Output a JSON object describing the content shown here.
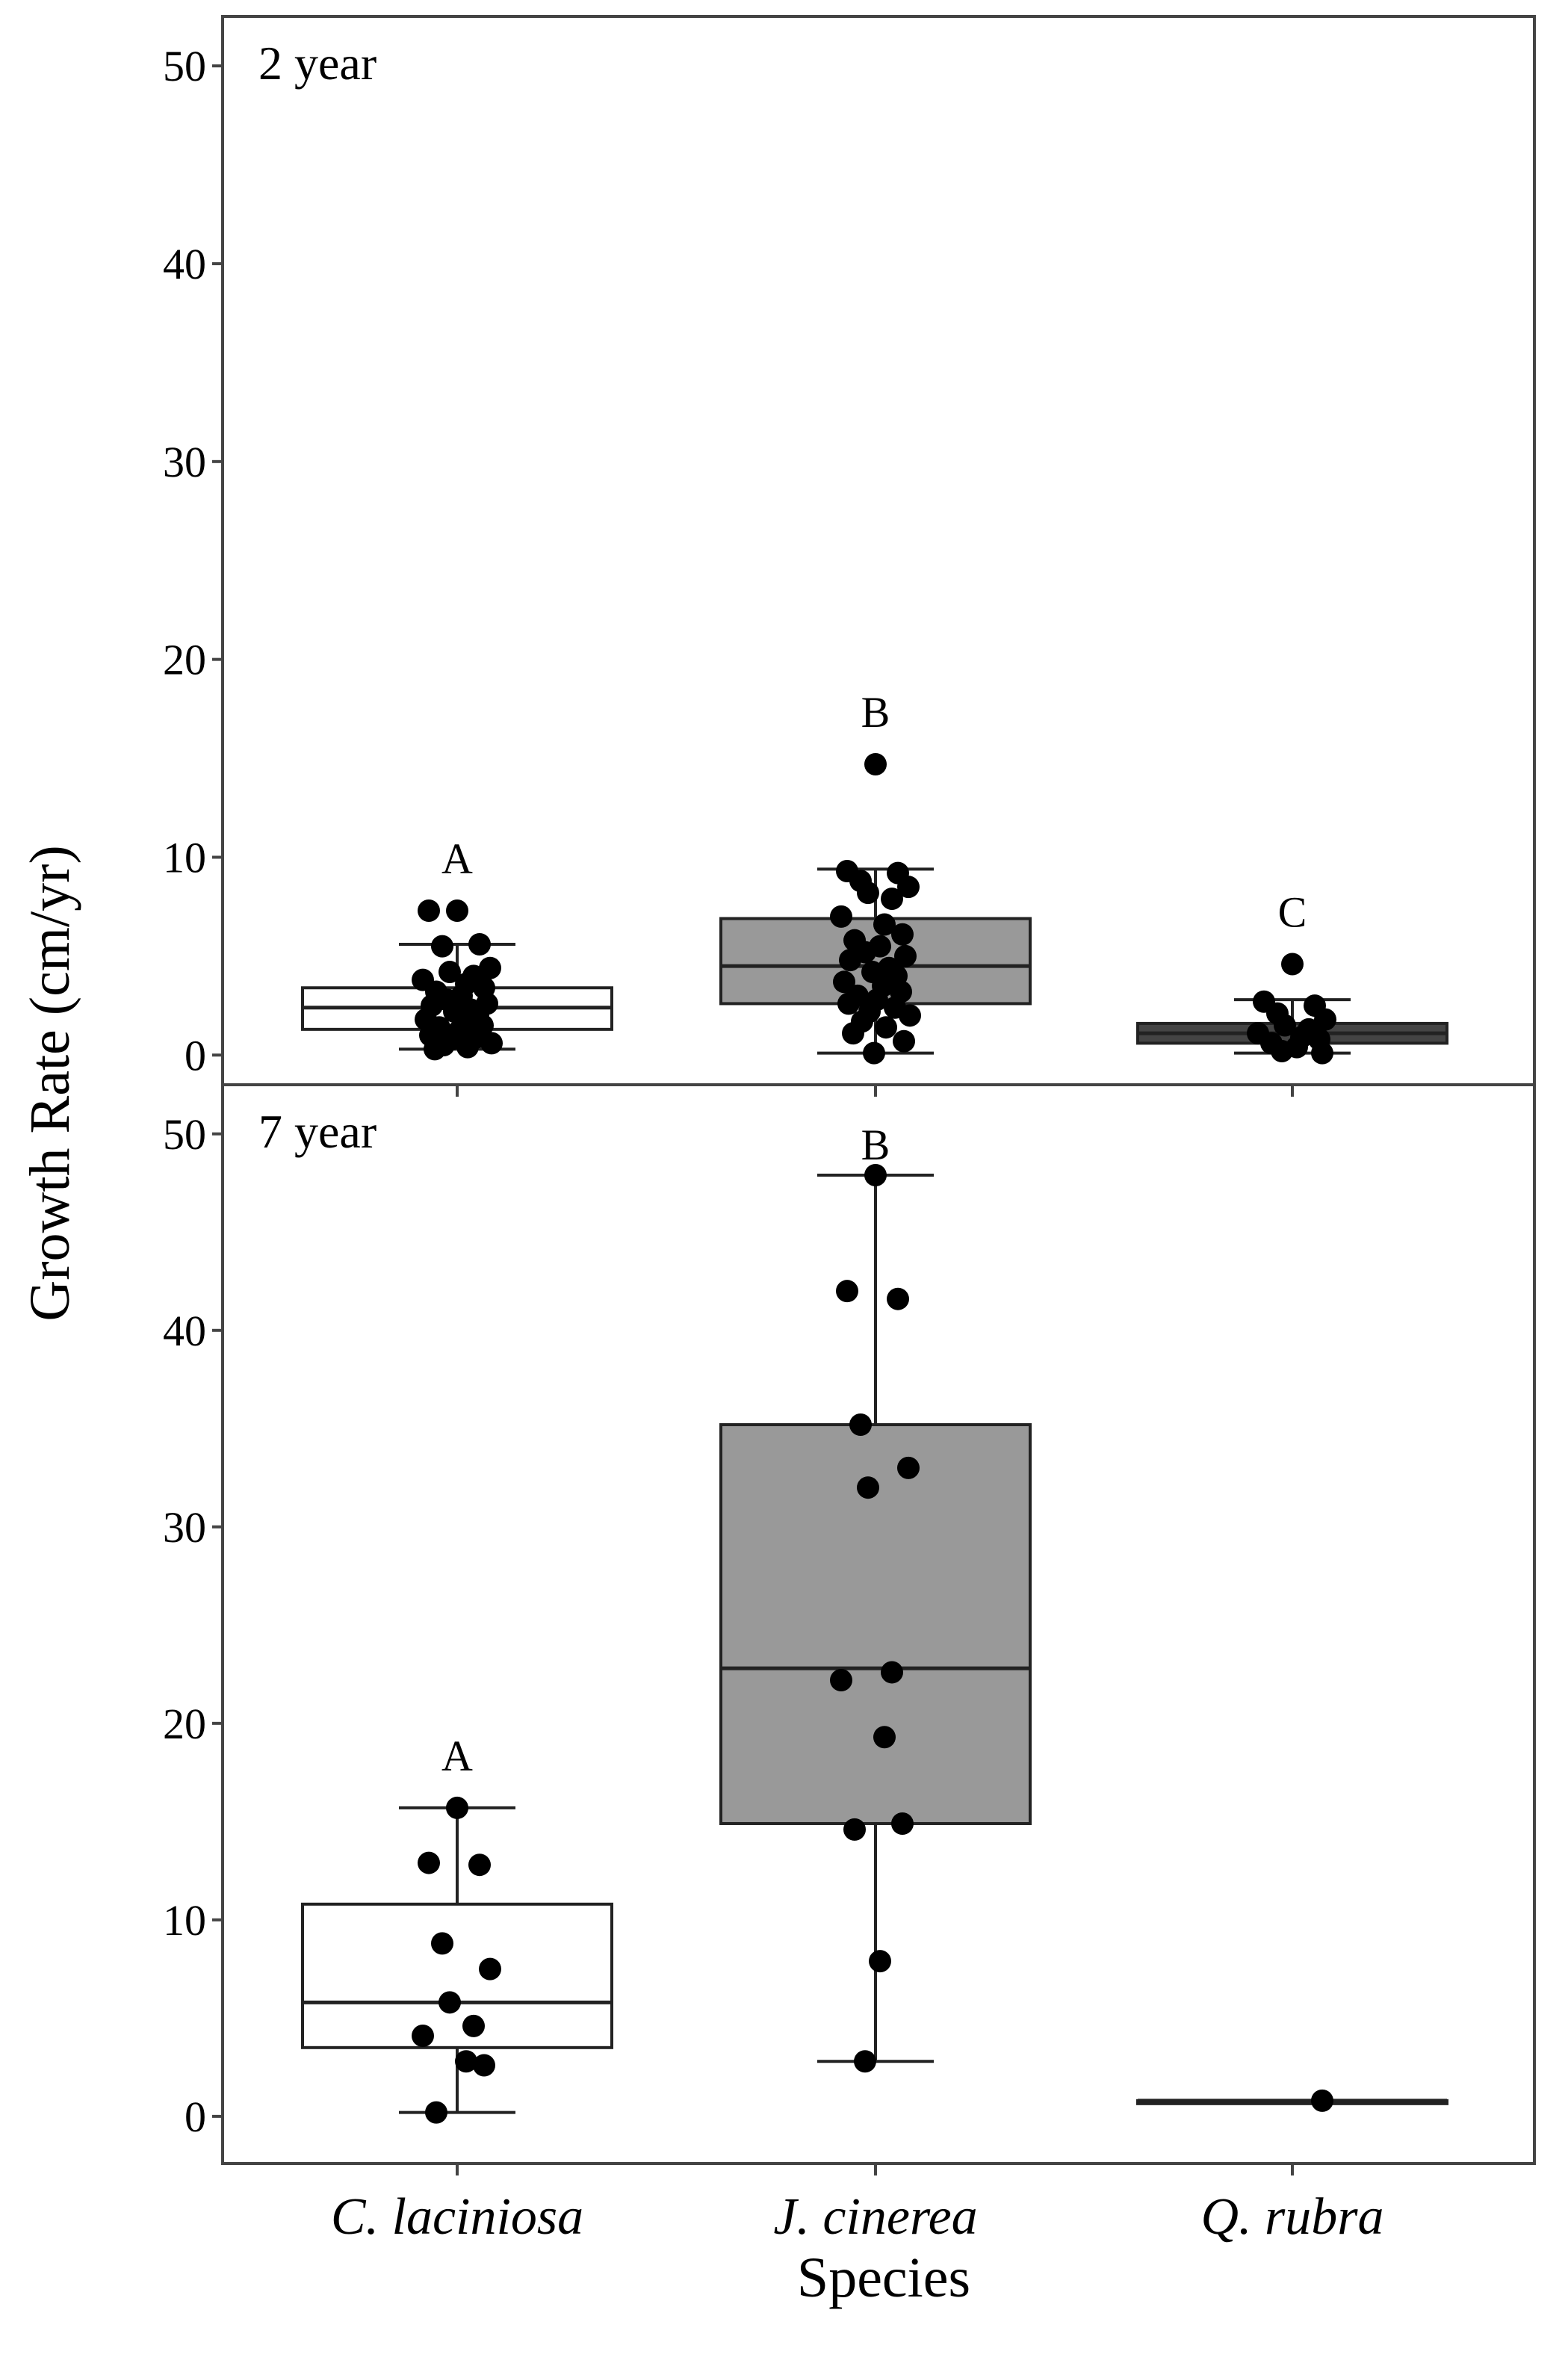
{
  "chart_data": {
    "type": "boxplot",
    "xlabel": "Species",
    "ylabel": "Growth Rate (cm/yr)",
    "categories": [
      "C. laciniosa",
      "J. cinerea",
      "Q. rubra"
    ],
    "fill_colors": [
      "#ffffff",
      "#999999",
      "#444444"
    ],
    "panels": [
      {
        "label": "2 year",
        "ylim": [
          -1.5,
          52.5
        ],
        "yticks": [
          0,
          10,
          20,
          30,
          40,
          50
        ],
        "boxes": [
          {
            "species": "C. laciniosa",
            "letter": "A",
            "whisker_low": 0.3,
            "q1": 1.3,
            "median": 2.4,
            "q3": 3.4,
            "whisker_high": 5.6,
            "points": [
              7.3,
              7.3,
              5.6,
              5.5,
              4.4,
              4.2,
              4.0,
              3.8,
              3.6,
              3.4,
              3.2,
              3.0,
              2.8,
              2.6,
              2.5,
              2.3,
              2.2,
              2.0,
              1.8,
              1.6,
              1.5,
              1.4,
              1.2,
              1.0,
              0.9,
              0.8,
              0.6,
              0.5,
              0.4,
              0.3
            ]
          },
          {
            "species": "J. cinerea",
            "letter": "B",
            "whisker_low": 0.1,
            "q1": 2.6,
            "median": 4.5,
            "q3": 6.9,
            "whisker_high": 9.4,
            "points": [
              14.7,
              9.3,
              9.2,
              8.8,
              8.5,
              8.2,
              7.9,
              7.0,
              6.6,
              6.1,
              5.8,
              5.5,
              5.2,
              5.0,
              4.8,
              4.4,
              4.2,
              4.0,
              3.7,
              3.5,
              3.2,
              3.0,
              2.8,
              2.6,
              2.4,
              2.2,
              2.0,
              1.7,
              1.4,
              1.1,
              0.7,
              0.1
            ]
          },
          {
            "species": "Q. rubra",
            "letter": "C",
            "whisker_low": 0.1,
            "q1": 0.6,
            "median": 1.1,
            "q3": 1.6,
            "whisker_high": 2.8,
            "points": [
              4.6,
              2.7,
              2.5,
              2.1,
              1.8,
              1.5,
              1.3,
              1.1,
              0.9,
              0.8,
              0.6,
              0.4,
              0.2,
              0.1
            ]
          }
        ]
      },
      {
        "label": "7 year",
        "ylim": [
          -2.4,
          52.5
        ],
        "yticks": [
          0,
          10,
          20,
          30,
          40,
          50
        ],
        "boxes": [
          {
            "species": "C. laciniosa",
            "letter": "A",
            "whisker_low": 0.2,
            "q1": 3.5,
            "median": 5.8,
            "q3": 10.8,
            "whisker_high": 15.7,
            "points": [
              15.7,
              12.9,
              12.8,
              8.8,
              7.5,
              5.8,
              4.6,
              4.1,
              2.8,
              2.6,
              0.2
            ]
          },
          {
            "species": "J. cinerea",
            "letter": "B",
            "whisker_low": 2.8,
            "q1": 14.9,
            "median": 22.8,
            "q3": 35.2,
            "whisker_high": 47.9,
            "points": [
              47.9,
              42.0,
              41.6,
              35.2,
              33.0,
              32.0,
              22.6,
              22.2,
              19.3,
              14.9,
              14.6,
              7.9,
              2.8
            ]
          },
          {
            "species": "Q. rubra",
            "letter": "",
            "whisker_low": 0.8,
            "q1": 0.8,
            "median": 0.8,
            "q3": 0.8,
            "whisker_high": 0.8,
            "points": [
              0.8
            ]
          }
        ]
      }
    ]
  }
}
